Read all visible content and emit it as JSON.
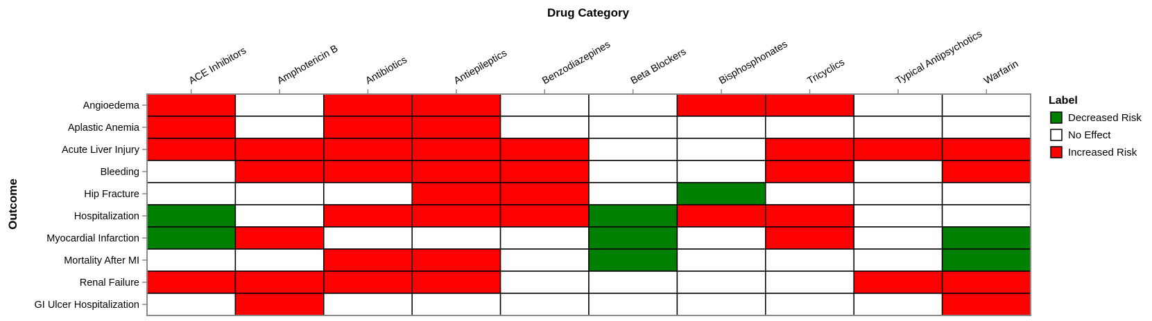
{
  "chart_data": {
    "type": "heatmap",
    "title": "",
    "xlabel": "Drug Category",
    "ylabel": "Outcome",
    "x_axis_position": "top",
    "categories_x": [
      "ACE Inhibitors",
      "Amphotericin B",
      "Antibiotics",
      "Antiepileptics",
      "Benzodiazepines",
      "Beta Blockers",
      "Bisphosphonates",
      "Tricyclics",
      "Typical Antipsychotics",
      "Warfarin"
    ],
    "categories_y": [
      "Angioedema",
      "Aplastic Anemia",
      "Acute Liver Injury",
      "Bleeding",
      "Hip Fracture",
      "Hospitalization",
      "Myocardial Infarction",
      "Mortality After MI",
      "Renal Failure",
      "GI Ulcer Hospitalization"
    ],
    "values": [
      [
        "Increased Risk",
        "No Effect",
        "Increased Risk",
        "Increased Risk",
        "No Effect",
        "No Effect",
        "Increased Risk",
        "Increased Risk",
        "No Effect",
        "No Effect"
      ],
      [
        "Increased Risk",
        "No Effect",
        "Increased Risk",
        "Increased Risk",
        "No Effect",
        "No Effect",
        "No Effect",
        "No Effect",
        "No Effect",
        "No Effect"
      ],
      [
        "Increased Risk",
        "Increased Risk",
        "Increased Risk",
        "Increased Risk",
        "Increased Risk",
        "No Effect",
        "No Effect",
        "Increased Risk",
        "Increased Risk",
        "Increased Risk"
      ],
      [
        "No Effect",
        "Increased Risk",
        "Increased Risk",
        "Increased Risk",
        "Increased Risk",
        "No Effect",
        "No Effect",
        "Increased Risk",
        "No Effect",
        "Increased Risk"
      ],
      [
        "No Effect",
        "No Effect",
        "No Effect",
        "Increased Risk",
        "Increased Risk",
        "No Effect",
        "Decreased Risk",
        "No Effect",
        "No Effect",
        "No Effect"
      ],
      [
        "Decreased Risk",
        "No Effect",
        "Increased Risk",
        "Increased Risk",
        "Increased Risk",
        "Decreased Risk",
        "Increased Risk",
        "Increased Risk",
        "No Effect",
        "No Effect"
      ],
      [
        "Decreased Risk",
        "Increased Risk",
        "No Effect",
        "No Effect",
        "No Effect",
        "Decreased Risk",
        "No Effect",
        "Increased Risk",
        "No Effect",
        "Decreased Risk"
      ],
      [
        "No Effect",
        "No Effect",
        "Increased Risk",
        "Increased Risk",
        "No Effect",
        "Decreased Risk",
        "No Effect",
        "No Effect",
        "No Effect",
        "Decreased Risk"
      ],
      [
        "Increased Risk",
        "Increased Risk",
        "Increased Risk",
        "Increased Risk",
        "No Effect",
        "No Effect",
        "No Effect",
        "No Effect",
        "Increased Risk",
        "Increased Risk"
      ],
      [
        "No Effect",
        "Increased Risk",
        "No Effect",
        "No Effect",
        "No Effect",
        "No Effect",
        "No Effect",
        "No Effect",
        "No Effect",
        "Increased Risk"
      ]
    ],
    "legend": {
      "title": "Label",
      "placement": "right",
      "entries": [
        {
          "label": "Decreased Risk",
          "color": "#008000"
        },
        {
          "label": "No Effect",
          "color": "#ffffff"
        },
        {
          "label": "Increased Risk",
          "color": "#ff0000"
        }
      ]
    },
    "grid": false
  }
}
